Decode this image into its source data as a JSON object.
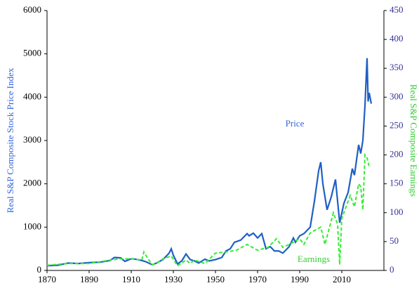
{
  "chart_data": {
    "type": "line",
    "ylabel": "Real S&P Composite Stock Price Index",
    "y2label": "Real S&P Composite Earnings",
    "annotations": [
      "Price",
      "Earnings"
    ],
    "xlim": [
      1870,
      2030
    ],
    "xticks": [
      1870,
      1890,
      1910,
      1930,
      1950,
      1970,
      1990,
      2010
    ],
    "ylim": [
      0,
      6000
    ],
    "yticks": [
      0,
      1000,
      2000,
      3000,
      4000,
      5000,
      6000
    ],
    "y2lim": [
      0,
      450
    ],
    "y2ticks": [
      0,
      50,
      100,
      150,
      200,
      250,
      300,
      350,
      400,
      450
    ],
    "series": [
      {
        "name": "Price",
        "color": "#1f5fc4",
        "axis": "y",
        "x": [
          1870,
          1875,
          1880,
          1885,
          1890,
          1895,
          1900,
          1902,
          1905,
          1907,
          1910,
          1912,
          1915,
          1917,
          1920,
          1922,
          1925,
          1928,
          1929,
          1930,
          1932,
          1934,
          1936,
          1938,
          1940,
          1942,
          1945,
          1947,
          1950,
          1953,
          1955,
          1957,
          1959,
          1962,
          1965,
          1966,
          1968,
          1970,
          1972,
          1974,
          1976,
          1978,
          1980,
          1982,
          1985,
          1987,
          1988,
          1990,
          1992,
          1995,
          1997,
          1999,
          2000,
          2001,
          2003,
          2005,
          2007,
          2008,
          2009,
          2011,
          2013,
          2015,
          2016,
          2018,
          2019,
          2020,
          2021,
          2022,
          2022.5,
          2023,
          2024
        ],
        "values": [
          110,
          120,
          170,
          160,
          180,
          190,
          230,
          300,
          290,
          210,
          270,
          260,
          230,
          200,
          130,
          170,
          250,
          400,
          500,
          350,
          150,
          220,
          380,
          250,
          220,
          170,
          260,
          220,
          250,
          300,
          450,
          500,
          650,
          700,
          850,
          800,
          860,
          750,
          850,
          500,
          550,
          450,
          450,
          400,
          550,
          750,
          650,
          800,
          850,
          1000,
          1600,
          2300,
          2500,
          2000,
          1400,
          1700,
          2100,
          1600,
          1100,
          1550,
          1800,
          2350,
          2200,
          2900,
          2700,
          3000,
          3800,
          4900,
          3900,
          4100,
          3850
        ]
      },
      {
        "name": "Earnings",
        "color": "#33ee33",
        "axis": "y2",
        "x": [
          1870,
          1880,
          1890,
          1900,
          1905,
          1910,
          1915,
          1916,
          1918,
          1920,
          1922,
          1925,
          1929,
          1932,
          1936,
          1938,
          1940,
          1945,
          1950,
          1955,
          1960,
          1965,
          1970,
          1975,
          1979,
          1982,
          1985,
          1990,
          1992,
          1995,
          2000,
          2002,
          2006,
          2008,
          2009,
          2010,
          2012,
          2014,
          2016,
          2018,
          2019,
          2020,
          2021,
          2022,
          2023
        ],
        "values": [
          9,
          12,
          12,
          18,
          20,
          20,
          18,
          32,
          20,
          10,
          12,
          20,
          25,
          8,
          18,
          12,
          18,
          12,
          30,
          32,
          35,
          45,
          35,
          40,
          55,
          40,
          45,
          55,
          45,
          65,
          75,
          45,
          100,
          80,
          10,
          90,
          110,
          130,
          110,
          150,
          145,
          105,
          200,
          195,
          180
        ]
      }
    ]
  }
}
